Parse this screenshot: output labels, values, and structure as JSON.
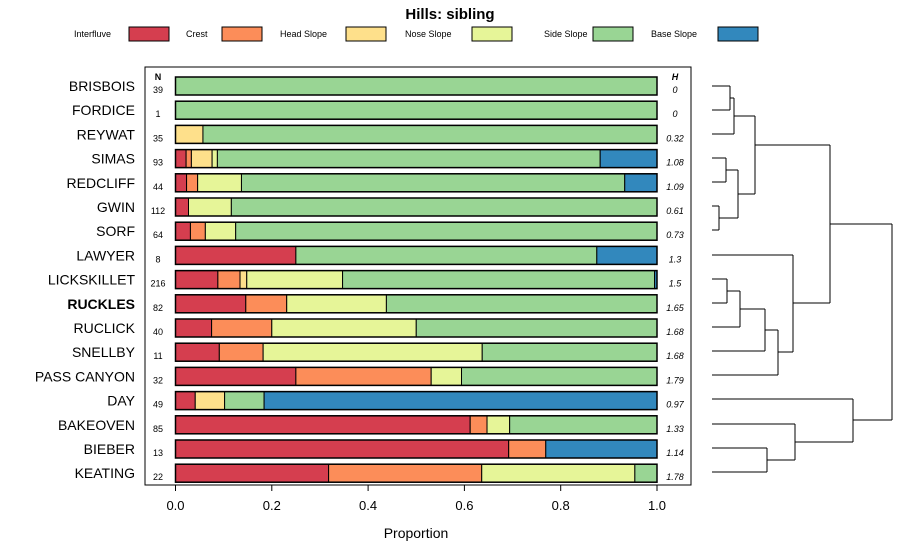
{
  "chart_data": {
    "type": "bar",
    "orientation": "horizontal",
    "stacked": true,
    "title": "Hills: sibling",
    "xlabel": "Proportion",
    "ylabel": "",
    "xlim": [
      0,
      1
    ],
    "xticks": [
      "0.0",
      "0.2",
      "0.4",
      "0.6",
      "0.8",
      "1.0"
    ],
    "n_header": "N",
    "h_header": "H",
    "legend_position": "top",
    "series": [
      {
        "name": "Interfluve",
        "color": "#d53e4f"
      },
      {
        "name": "Crest",
        "color": "#fc8d59"
      },
      {
        "name": "Head Slope",
        "color": "#fee08b"
      },
      {
        "name": "Nose Slope",
        "color": "#e6f598"
      },
      {
        "name": "Side Slope",
        "color": "#99d594"
      },
      {
        "name": "Base Slope",
        "color": "#3288bd"
      }
    ],
    "highlight_category": "RUCKLES",
    "rows": [
      {
        "name": "BRISBOIS",
        "n": "39",
        "h": "0",
        "values": [
          0,
          0,
          0,
          0,
          1.0,
          0
        ]
      },
      {
        "name": "FORDICE",
        "n": "1",
        "h": "0",
        "values": [
          0,
          0,
          0,
          0,
          1.0,
          0
        ]
      },
      {
        "name": "REYWAT",
        "n": "35",
        "h": "0.32",
        "values": [
          0,
          0,
          0.057,
          0,
          0.943,
          0
        ]
      },
      {
        "name": "SIMAS",
        "n": "93",
        "h": "1.08",
        "values": [
          0.022,
          0.011,
          0.043,
          0.011,
          0.795,
          0.118
        ]
      },
      {
        "name": "REDCLIFF",
        "n": "44",
        "h": "1.09",
        "values": [
          0.023,
          0.023,
          0,
          0.091,
          0.796,
          0.067
        ]
      },
      {
        "name": "GWIN",
        "n": "112",
        "h": "0.61",
        "values": [
          0.027,
          0,
          0,
          0.089,
          0.884,
          0
        ]
      },
      {
        "name": "SORF",
        "n": "64",
        "h": "0.73",
        "values": [
          0.031,
          0.031,
          0,
          0.063,
          0.875,
          0
        ]
      },
      {
        "name": "LAWYER",
        "n": "8",
        "h": "1.3",
        "values": [
          0.25,
          0,
          0,
          0,
          0.625,
          0.125
        ]
      },
      {
        "name": "LICKSKILLET",
        "n": "216",
        "h": "1.5",
        "values": [
          0.088,
          0.046,
          0.014,
          0.199,
          0.648,
          0.005
        ]
      },
      {
        "name": "RUCKLES",
        "n": "82",
        "h": "1.65",
        "values": [
          0.146,
          0.085,
          0,
          0.207,
          0.562,
          0
        ]
      },
      {
        "name": "RUCLICK",
        "n": "40",
        "h": "1.68",
        "values": [
          0.075,
          0.125,
          0,
          0.3,
          0.5,
          0
        ]
      },
      {
        "name": "SNELLBY",
        "n": "11",
        "h": "1.68",
        "values": [
          0.091,
          0.091,
          0,
          0.455,
          0.363,
          0
        ]
      },
      {
        "name": "PASS CANYON",
        "n": "32",
        "h": "1.79",
        "values": [
          0.25,
          0.281,
          0,
          0.063,
          0.406,
          0
        ]
      },
      {
        "name": "DAY",
        "n": "49",
        "h": "0.97",
        "values": [
          0.041,
          0,
          0.061,
          0,
          0.082,
          0.816
        ]
      },
      {
        "name": "BAKEOVEN",
        "n": "85",
        "h": "1.33",
        "values": [
          0.612,
          0.035,
          0,
          0.047,
          0.306,
          0
        ]
      },
      {
        "name": "BIEBER",
        "n": "13",
        "h": "1.14",
        "values": [
          0.692,
          0.077,
          0,
          0,
          0,
          0.231
        ]
      },
      {
        "name": "KEATING",
        "n": "22",
        "h": "1.78",
        "values": [
          0.318,
          0.318,
          0,
          0.318,
          0.046,
          0
        ]
      }
    ]
  }
}
